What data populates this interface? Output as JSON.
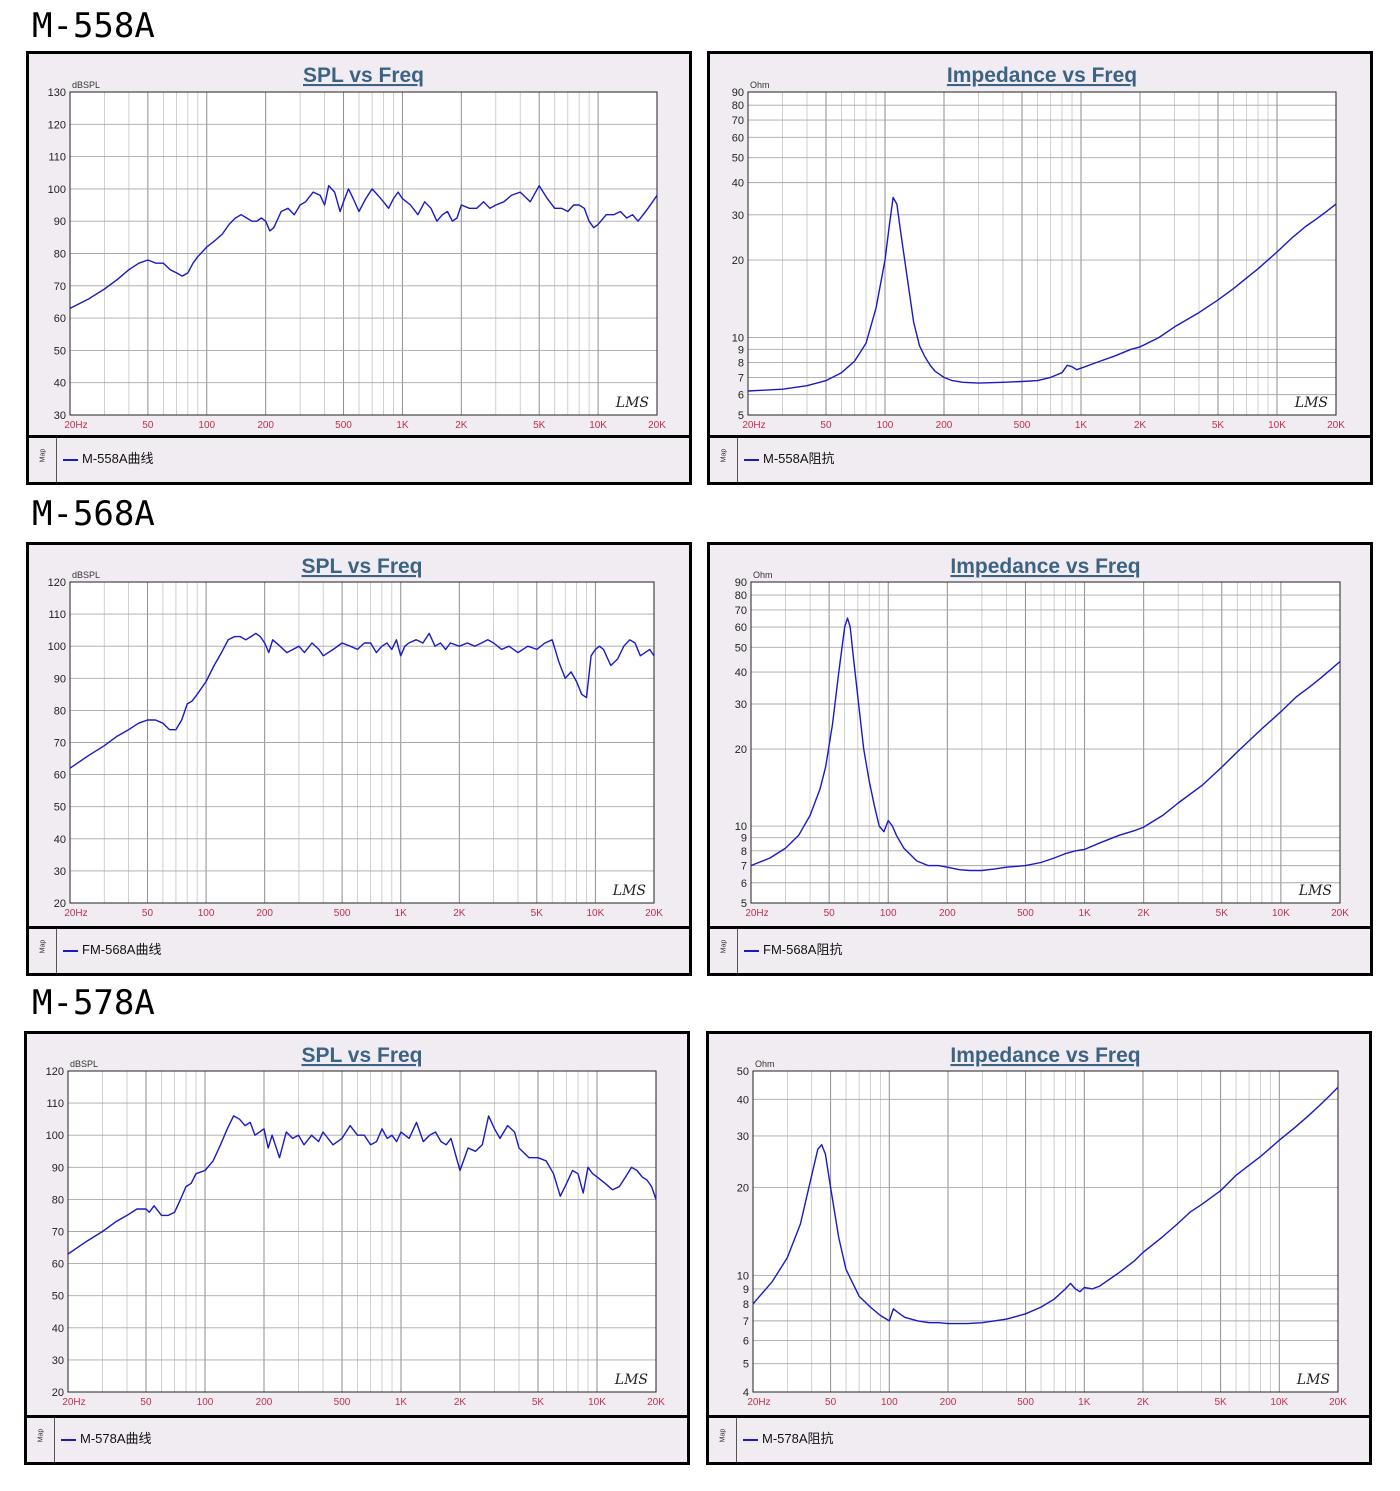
{
  "page": {
    "sections": [
      {
        "model": "M-558A"
      },
      {
        "model": "M-568A"
      },
      {
        "model": "M-578A"
      }
    ]
  },
  "chart_data": [
    {
      "type": "line",
      "title": "SPL vs Freq",
      "ylabel": "dBSPL",
      "x_scale": "log",
      "xlim": [
        20,
        20000
      ],
      "ylim": [
        30,
        130
      ],
      "yticks": [
        30,
        40,
        50,
        60,
        70,
        80,
        90,
        100,
        110,
        120,
        130
      ],
      "xtick_labels": [
        "20Hz",
        "50",
        "100",
        "200",
        "500",
        "1K",
        "2K",
        "5K",
        "10K",
        "20K"
      ],
      "watermark": "LMS",
      "legend_side_label": "Map",
      "series": [
        {
          "name": "M-558A曲线",
          "color": "#1a1ac4",
          "x": [
            20,
            25,
            30,
            35,
            40,
            45,
            50,
            55,
            60,
            65,
            70,
            75,
            80,
            85,
            90,
            100,
            110,
            120,
            130,
            140,
            150,
            160,
            170,
            180,
            190,
            200,
            210,
            220,
            240,
            260,
            280,
            300,
            320,
            350,
            380,
            400,
            420,
            450,
            480,
            500,
            530,
            560,
            600,
            650,
            700,
            750,
            800,
            850,
            900,
            950,
            1000,
            1100,
            1200,
            1300,
            1400,
            1500,
            1600,
            1700,
            1800,
            1900,
            2000,
            2200,
            2400,
            2600,
            2800,
            3000,
            3300,
            3600,
            4000,
            4500,
            5000,
            5500,
            6000,
            6500,
            7000,
            7500,
            8000,
            8500,
            9000,
            9500,
            10000,
            11000,
            12000,
            13000,
            14000,
            15000,
            16000,
            17000,
            18000,
            19000,
            20000
          ],
          "y": [
            63,
            66,
            69,
            72,
            75,
            77,
            78,
            77,
            77,
            75,
            74,
            73,
            74,
            77,
            79,
            82,
            84,
            86,
            89,
            91,
            92,
            91,
            90,
            90,
            91,
            90,
            87,
            88,
            93,
            94,
            92,
            95,
            96,
            99,
            98,
            95,
            101,
            99,
            93,
            96,
            100,
            97,
            93,
            97,
            100,
            98,
            96,
            94,
            97,
            99,
            97,
            95,
            92,
            96,
            94,
            90,
            92,
            93,
            90,
            91,
            95,
            94,
            94,
            96,
            94,
            95,
            96,
            98,
            99,
            96,
            101,
            97,
            94,
            94,
            93,
            95,
            95,
            94,
            90,
            88,
            89,
            92,
            92,
            93,
            91,
            92,
            90,
            92,
            94,
            96,
            98
          ]
        }
      ]
    },
    {
      "type": "line",
      "title": "Impedance vs Freq",
      "ylabel": "Ohm",
      "x_scale": "log",
      "y_scale": "log",
      "xlim": [
        20,
        20000
      ],
      "ylim": [
        5,
        90
      ],
      "yticks": [
        5,
        6,
        7,
        8,
        9,
        10,
        20,
        30,
        40,
        50,
        60,
        70,
        80,
        90
      ],
      "xtick_labels": [
        "20Hz",
        "50",
        "100",
        "200",
        "500",
        "1K",
        "2K",
        "5K",
        "10K",
        "20K"
      ],
      "watermark": "LMS",
      "legend_side_label": "Map",
      "series": [
        {
          "name": "M-558A阻抗",
          "color": "#1a1ac4",
          "x": [
            20,
            30,
            40,
            50,
            60,
            70,
            80,
            90,
            100,
            105,
            110,
            115,
            120,
            130,
            140,
            150,
            160,
            170,
            180,
            200,
            220,
            250,
            300,
            400,
            500,
            600,
            700,
            800,
            850,
            900,
            950,
            1000,
            1200,
            1500,
            1800,
            2000,
            2500,
            3000,
            4000,
            5000,
            6000,
            8000,
            10000,
            12000,
            14000,
            16000,
            18000,
            20000
          ],
          "y": [
            6.2,
            6.3,
            6.5,
            6.8,
            7.3,
            8.1,
            9.5,
            13,
            20,
            27,
            35,
            33,
            26,
            17,
            11.5,
            9.3,
            8.4,
            7.8,
            7.4,
            7.0,
            6.8,
            6.7,
            6.65,
            6.7,
            6.75,
            6.8,
            7.0,
            7.3,
            7.8,
            7.7,
            7.5,
            7.6,
            8.0,
            8.5,
            9.0,
            9.2,
            10.0,
            11.0,
            12.5,
            14.0,
            15.5,
            18.5,
            21.5,
            24.5,
            27,
            29,
            31,
            33
          ]
        }
      ]
    },
    {
      "type": "line",
      "title": "SPL vs Freq",
      "ylabel": "dBSPL",
      "x_scale": "log",
      "xlim": [
        20,
        20000
      ],
      "ylim": [
        20,
        120
      ],
      "yticks": [
        20,
        30,
        40,
        50,
        60,
        70,
        80,
        90,
        100,
        110,
        120
      ],
      "xtick_labels": [
        "20Hz",
        "50",
        "100",
        "200",
        "500",
        "1K",
        "2K",
        "5K",
        "10K",
        "20K"
      ],
      "watermark": "LMS",
      "legend_side_label": "Map",
      "series": [
        {
          "name": "FM-568A曲线",
          "color": "#1a1ac4",
          "x": [
            20,
            25,
            30,
            35,
            40,
            45,
            50,
            55,
            60,
            65,
            70,
            75,
            80,
            85,
            90,
            100,
            110,
            120,
            130,
            140,
            150,
            160,
            170,
            180,
            190,
            200,
            210,
            220,
            240,
            260,
            280,
            300,
            320,
            350,
            380,
            400,
            450,
            500,
            550,
            600,
            650,
            700,
            750,
            800,
            850,
            900,
            950,
            1000,
            1050,
            1100,
            1200,
            1300,
            1400,
            1500,
            1600,
            1700,
            1800,
            2000,
            2200,
            2400,
            2600,
            2800,
            3000,
            3300,
            3600,
            4000,
            4500,
            5000,
            5500,
            6000,
            6500,
            7000,
            7500,
            8000,
            8500,
            9000,
            9500,
            10000,
            10500,
            11000,
            12000,
            13000,
            14000,
            15000,
            16000,
            17000,
            18000,
            19000,
            20000
          ],
          "y": [
            62,
            66,
            69,
            72,
            74,
            76,
            77,
            77,
            76,
            74,
            74,
            77,
            82,
            83,
            85,
            89,
            94,
            98,
            102,
            103,
            103,
            102,
            103,
            104,
            103,
            101,
            98,
            102,
            100,
            98,
            99,
            100,
            98,
            101,
            99,
            97,
            99,
            101,
            100,
            99,
            101,
            101,
            98,
            100,
            101,
            99,
            102,
            97,
            100,
            101,
            102,
            101,
            104,
            100,
            101,
            99,
            101,
            100,
            101,
            100,
            101,
            102,
            101,
            99,
            100,
            98,
            100,
            99,
            101,
            102,
            95,
            90,
            92,
            89,
            85,
            84,
            97,
            99,
            100,
            99,
            94,
            96,
            100,
            102,
            101,
            97,
            98,
            99,
            97
          ]
        }
      ]
    },
    {
      "type": "line",
      "title": "Impedance vs Freq",
      "ylabel": "Ohm",
      "x_scale": "log",
      "y_scale": "log",
      "xlim": [
        20,
        20000
      ],
      "ylim": [
        5,
        90
      ],
      "yticks": [
        5,
        6,
        7,
        8,
        9,
        10,
        20,
        30,
        40,
        50,
        60,
        70,
        80,
        90
      ],
      "xtick_labels": [
        "20Hz",
        "50",
        "100",
        "200",
        "500",
        "1K",
        "2K",
        "5K",
        "10K",
        "20K"
      ],
      "watermark": "LMS",
      "legend_side_label": "Map",
      "series": [
        {
          "name": "FM-568A阻抗",
          "color": "#1a1ac4",
          "x": [
            20,
            25,
            30,
            35,
            40,
            45,
            48,
            52,
            56,
            60,
            62,
            64,
            66,
            70,
            75,
            80,
            85,
            90,
            95,
            100,
            105,
            110,
            120,
            140,
            160,
            180,
            200,
            230,
            260,
            300,
            350,
            400,
            500,
            600,
            700,
            800,
            900,
            1000,
            1200,
            1500,
            1800,
            2000,
            2500,
            3000,
            4000,
            5000,
            6000,
            8000,
            10000,
            12000,
            14000,
            16000,
            18000,
            20000
          ],
          "y": [
            7.0,
            7.5,
            8.2,
            9.2,
            11,
            14,
            17,
            25,
            40,
            60,
            65,
            60,
            48,
            32,
            20,
            15,
            12,
            10,
            9.5,
            10.5,
            10,
            9.2,
            8.2,
            7.3,
            7.0,
            7.0,
            6.9,
            6.75,
            6.7,
            6.7,
            6.8,
            6.9,
            7.0,
            7.2,
            7.5,
            7.8,
            8.0,
            8.1,
            8.6,
            9.2,
            9.6,
            9.9,
            11,
            12.3,
            14.5,
            17,
            19.5,
            24,
            28,
            32,
            35,
            38,
            41,
            44
          ]
        }
      ]
    },
    {
      "type": "line",
      "title": "SPL vs Freq",
      "ylabel": "dBSPL",
      "x_scale": "log",
      "xlim": [
        20,
        20000
      ],
      "ylim": [
        20,
        120
      ],
      "yticks": [
        20,
        30,
        40,
        50,
        60,
        70,
        80,
        90,
        100,
        110,
        120
      ],
      "xtick_labels": [
        "20Hz",
        "50",
        "100",
        "200",
        "500",
        "1K",
        "2K",
        "5K",
        "10K",
        "20K"
      ],
      "watermark": "LMS",
      "legend_side_label": "Map",
      "series": [
        {
          "name": "M-578A曲线",
          "color": "#1a1ac4",
          "x": [
            20,
            25,
            30,
            35,
            40,
            45,
            50,
            52,
            55,
            60,
            65,
            70,
            75,
            80,
            85,
            90,
            100,
            110,
            120,
            130,
            140,
            150,
            160,
            170,
            180,
            190,
            200,
            210,
            220,
            240,
            260,
            280,
            300,
            320,
            350,
            380,
            400,
            450,
            500,
            550,
            600,
            650,
            700,
            750,
            800,
            850,
            900,
            950,
            1000,
            1100,
            1200,
            1300,
            1400,
            1500,
            1600,
            1700,
            1800,
            2000,
            2200,
            2400,
            2600,
            2800,
            3000,
            3200,
            3500,
            3800,
            4000,
            4500,
            5000,
            5500,
            6000,
            6500,
            7000,
            7500,
            8000,
            8500,
            9000,
            9500,
            10000,
            11000,
            12000,
            13000,
            14000,
            15000,
            16000,
            17000,
            18000,
            19000,
            20000
          ],
          "y": [
            63,
            67,
            70,
            73,
            75,
            77,
            77,
            76,
            78,
            75,
            75,
            76,
            80,
            84,
            85,
            88,
            89,
            92,
            97,
            102,
            106,
            105,
            103,
            104,
            100,
            101,
            102,
            96,
            100,
            93,
            101,
            99,
            100,
            97,
            100,
            98,
            101,
            97,
            99,
            103,
            100,
            100,
            97,
            98,
            102,
            99,
            100,
            98,
            101,
            99,
            104,
            98,
            100,
            101,
            98,
            97,
            99,
            89,
            96,
            95,
            97,
            106,
            102,
            99,
            103,
            101,
            96,
            93,
            93,
            92,
            88,
            81,
            85,
            89,
            88,
            82,
            90,
            88,
            87,
            85,
            83,
            84,
            87,
            90,
            89,
            87,
            86,
            84,
            80
          ]
        }
      ]
    },
    {
      "type": "line",
      "title": "Impedance vs Freq",
      "ylabel": "Ohm",
      "x_scale": "log",
      "y_scale": "log",
      "xlim": [
        20,
        20000
      ],
      "ylim": [
        4,
        50
      ],
      "yticks": [
        4,
        5,
        6,
        7,
        8,
        9,
        10,
        20,
        30,
        40,
        50
      ],
      "xtick_labels": [
        "20Hz",
        "50",
        "100",
        "200",
        "500",
        "1K",
        "2K",
        "5K",
        "10K",
        "20K"
      ],
      "watermark": "LMS",
      "legend_side_label": "Map",
      "series": [
        {
          "name": "M-578A阻抗",
          "color": "#1a1ac4",
          "x": [
            20,
            25,
            30,
            35,
            40,
            43,
            45,
            47,
            50,
            55,
            60,
            70,
            80,
            90,
            100,
            105,
            110,
            120,
            140,
            160,
            180,
            200,
            250,
            300,
            400,
            500,
            600,
            700,
            800,
            850,
            900,
            950,
            1000,
            1100,
            1200,
            1500,
            1800,
            2000,
            2500,
            3000,
            3500,
            4000,
            5000,
            6000,
            8000,
            10000,
            12000,
            14000,
            16000,
            18000,
            20000
          ],
          "y": [
            8.0,
            9.5,
            11.5,
            15,
            22,
            27,
            28,
            26,
            20,
            13.5,
            10.5,
            8.5,
            7.8,
            7.3,
            7.0,
            7.7,
            7.5,
            7.2,
            7.0,
            6.9,
            6.9,
            6.85,
            6.85,
            6.9,
            7.1,
            7.4,
            7.8,
            8.3,
            9.0,
            9.4,
            9.0,
            8.8,
            9.1,
            9.0,
            9.2,
            10.2,
            11.2,
            12.0,
            13.5,
            15.0,
            16.5,
            17.5,
            19.5,
            22,
            25.5,
            29,
            32,
            35,
            38,
            41,
            44
          ]
        }
      ]
    }
  ]
}
